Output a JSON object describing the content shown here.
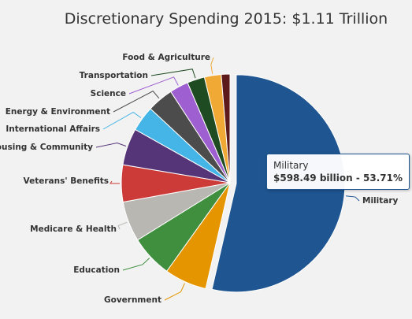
{
  "chart_data": {
    "type": "pie",
    "title": "Discretionary Spending 2015: $1.11 Trillion",
    "slices": [
      {
        "name": "Military",
        "value": 53.71,
        "color": "#1f5590"
      },
      {
        "name": "Government",
        "value": 6.3,
        "color": "#e59500"
      },
      {
        "name": "Education",
        "value": 6.3,
        "color": "#3f8f3f"
      },
      {
        "name": "Medicare & Health",
        "value": 6.0,
        "color": "#b9b7b2"
      },
      {
        "name": "Veterans' Benefits",
        "value": 5.5,
        "color": "#cc3b38"
      },
      {
        "name": "Housing & Community",
        "value": 5.5,
        "color": "#553478"
      },
      {
        "name": "International Affairs",
        "value": 3.8,
        "color": "#45b4e6"
      },
      {
        "name": "Energy & Environment",
        "value": 3.9,
        "color": "#4c4c4c"
      },
      {
        "name": "Science",
        "value": 2.8,
        "color": "#9e5fd1"
      },
      {
        "name": "Transportation",
        "value": 2.6,
        "color": "#1e4b22"
      },
      {
        "name": "Food & Agriculture",
        "value": 2.5,
        "color": "#f0a935"
      },
      {
        "name": "",
        "value": 1.3,
        "color": "#5c1a1a"
      }
    ],
    "tooltip": {
      "title": "Military",
      "value": "$598.49 billion - 53.71%"
    }
  }
}
